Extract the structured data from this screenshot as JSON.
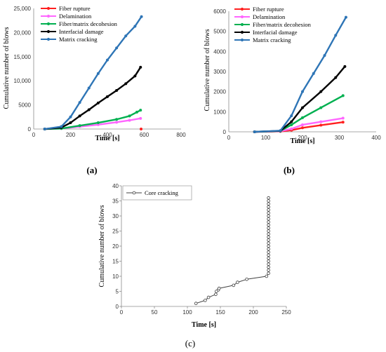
{
  "chart_data": [
    {
      "panel": "(a)",
      "type": "line",
      "xlabel": "Time [s]",
      "ylabel": "Cumulative number of blows",
      "xlim": [
        0,
        800
      ],
      "ylim": [
        0,
        25000
      ],
      "xticks": [
        0,
        200,
        400,
        600,
        800
      ],
      "xtick_labels": [
        "0",
        "200",
        "400",
        "600",
        "800"
      ],
      "yticks": [
        0,
        5000,
        10000,
        15000,
        20000,
        25000
      ],
      "ytick_labels": [
        "0",
        "5000",
        "10,000",
        "15,000",
        "20,000",
        "25,000"
      ],
      "legend_position": "top-left",
      "series": [
        {
          "name": "Fiber rupture",
          "color": "#ff2020",
          "x": [
            583
          ],
          "y": [
            0
          ]
        },
        {
          "name": "Delamination",
          "color": "#ff66ff",
          "x": [
            60,
            150,
            250,
            350,
            450,
            520,
            580
          ],
          "y": [
            0,
            100,
            500,
            900,
            1400,
            1800,
            2200
          ]
        },
        {
          "name": "Fiber/matrix decohesion",
          "color": "#00b050",
          "x": [
            60,
            150,
            250,
            350,
            450,
            520,
            560,
            580
          ],
          "y": [
            0,
            100,
            700,
            1300,
            2000,
            2700,
            3500,
            3900
          ]
        },
        {
          "name": "Interfacial damage",
          "color": "#000000",
          "x": [
            60,
            150,
            200,
            250,
            300,
            350,
            400,
            450,
            500,
            550,
            580
          ],
          "y": [
            0,
            300,
            1300,
            2700,
            4000,
            5400,
            6700,
            8000,
            9400,
            11000,
            12800
          ]
        },
        {
          "name": "Matrix cracking",
          "color": "#2e75b6",
          "x": [
            60,
            150,
            200,
            250,
            300,
            350,
            400,
            450,
            500,
            550,
            585
          ],
          "y": [
            0,
            500,
            2500,
            5500,
            8500,
            11500,
            14300,
            16800,
            19300,
            21300,
            23300
          ]
        }
      ]
    },
    {
      "panel": "(b)",
      "type": "line",
      "xlabel": "Time [s]",
      "ylabel": "Cumulative number of blows",
      "xlim": [
        0,
        400
      ],
      "ylim": [
        0,
        6000
      ],
      "xticks": [
        0,
        100,
        200,
        300,
        400
      ],
      "xtick_labels": [
        "0",
        "100",
        "200",
        "300",
        "400"
      ],
      "yticks": [
        0,
        1000,
        2000,
        3000,
        4000,
        5000,
        6000
      ],
      "ytick_labels": [
        "0",
        "1000",
        "2000",
        "3000",
        "4000",
        "5000",
        "6000"
      ],
      "legend_position": "top-left",
      "series": [
        {
          "name": "Fiber rupture",
          "color": "#ff2020",
          "x": [
            70,
            140,
            170,
            200,
            250,
            310
          ],
          "y": [
            0,
            20,
            80,
            200,
            330,
            480
          ]
        },
        {
          "name": "Delamination",
          "color": "#ff66ff",
          "x": [
            70,
            140,
            170,
            200,
            250,
            310
          ],
          "y": [
            0,
            30,
            150,
            350,
            500,
            680
          ]
        },
        {
          "name": "Fiber/matrix decohesion",
          "color": "#00b050",
          "x": [
            70,
            140,
            170,
            200,
            250,
            310
          ],
          "y": [
            0,
            40,
            350,
            700,
            1200,
            1800
          ]
        },
        {
          "name": "Interfacial damage",
          "color": "#000000",
          "x": [
            70,
            140,
            170,
            200,
            250,
            290,
            315
          ],
          "y": [
            0,
            50,
            500,
            1200,
            2000,
            2700,
            3250
          ]
        },
        {
          "name": "Matrix cracking",
          "color": "#2e75b6",
          "x": [
            70,
            140,
            170,
            200,
            230,
            260,
            290,
            318
          ],
          "y": [
            0,
            60,
            800,
            2000,
            2900,
            3800,
            4800,
            5700
          ]
        }
      ]
    },
    {
      "panel": "(c)",
      "type": "line",
      "xlabel": "Time [s]",
      "ylabel": "Cumulative number of blows",
      "xlim": [
        0,
        250
      ],
      "ylim": [
        0,
        40
      ],
      "xticks": [
        0,
        50,
        100,
        150,
        200,
        250
      ],
      "xtick_labels": [
        "0",
        "50",
        "100",
        "150",
        "200",
        "250"
      ],
      "yticks": [
        0,
        5,
        10,
        15,
        20,
        25,
        30,
        35,
        40
      ],
      "ytick_labels": [
        "0",
        "5",
        "10",
        "15",
        "20",
        "25",
        "30",
        "35",
        "40"
      ],
      "legend_position": "top-left",
      "series": [
        {
          "name": "Core cracking",
          "color": "#404040",
          "x": [
            113,
            127,
            132,
            143,
            144,
            147,
            148,
            170,
            176,
            190,
            220,
            223,
            223,
            223,
            223,
            223,
            223,
            223,
            223,
            223,
            223,
            223,
            223,
            223,
            223,
            223,
            223,
            223,
            223,
            223,
            223,
            223,
            223,
            223,
            223,
            223,
            223
          ],
          "y": [
            1,
            2,
            3,
            4,
            5,
            5.5,
            6,
            7,
            8,
            9,
            10,
            11,
            12,
            13,
            14,
            15,
            16,
            17,
            18,
            19,
            20,
            21,
            22,
            23,
            24,
            25,
            26,
            27,
            28,
            29,
            30,
            31,
            32,
            33,
            34,
            35,
            36
          ]
        }
      ]
    }
  ]
}
